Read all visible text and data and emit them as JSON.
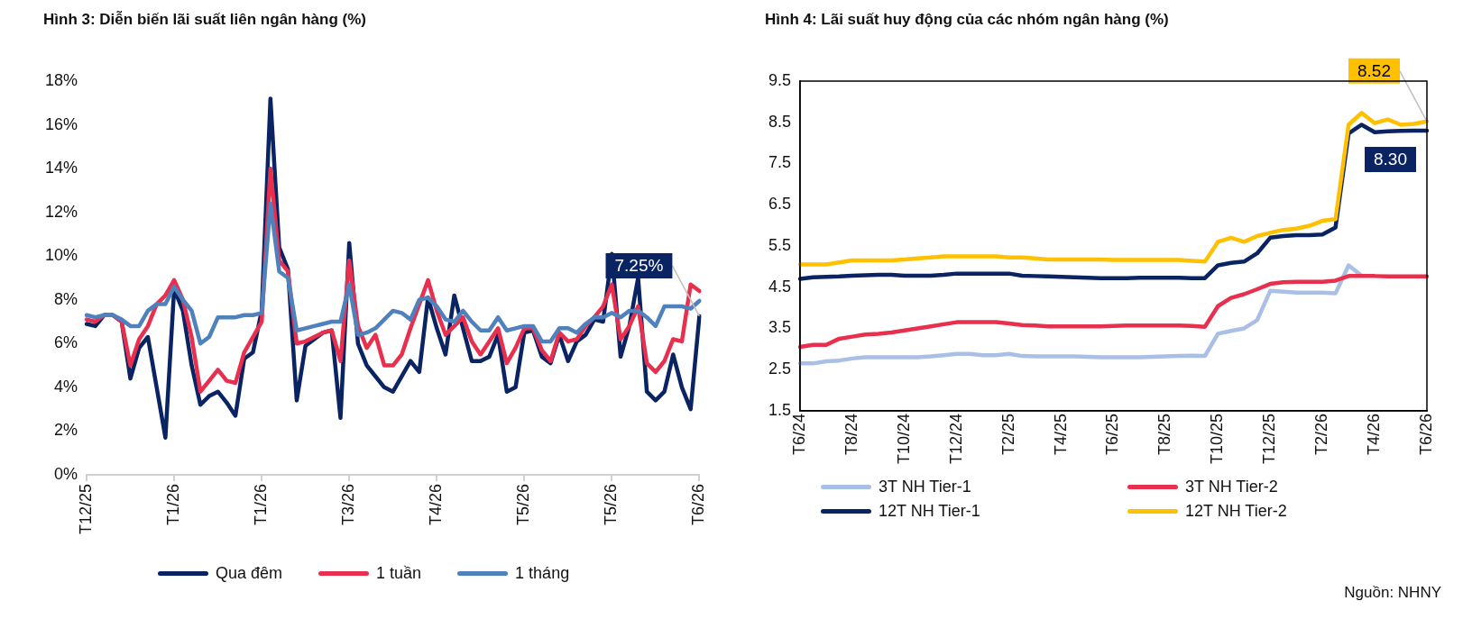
{
  "chart_data": [
    {
      "type": "line",
      "title": "Hình 3: Diễn biến lãi suất liên ngân hàng (%)",
      "marker": "none",
      "legend": "bottom",
      "grid": false,
      "categories": [
        "T12/25",
        null,
        null,
        null,
        null,
        null,
        null,
        null,
        null,
        null,
        "T1/26",
        null,
        null,
        null,
        null,
        null,
        null,
        null,
        null,
        null,
        "T1/26",
        null,
        null,
        null,
        null,
        null,
        null,
        null,
        null,
        null,
        "T3/26",
        null,
        null,
        null,
        null,
        null,
        null,
        null,
        null,
        null,
        "T4/26",
        null,
        null,
        null,
        null,
        null,
        null,
        null,
        null,
        null,
        "T5/26",
        null,
        null,
        null,
        null,
        null,
        null,
        null,
        null,
        null,
        "T5/26",
        null,
        null,
        null,
        null,
        null,
        null,
        null,
        null,
        null,
        "T6/26"
      ],
      "ylim": [
        0,
        18
      ],
      "yticks": [
        {
          "value": 0,
          "label": "0%"
        },
        {
          "value": 2,
          "label": "2%"
        },
        {
          "value": 4,
          "label": "4%"
        },
        {
          "value": 6,
          "label": "6%"
        },
        {
          "value": 8,
          "label": "8%"
        },
        {
          "value": 10,
          "label": "10%"
        },
        {
          "value": 12,
          "label": "12%"
        },
        {
          "value": 14,
          "label": "14%"
        },
        {
          "value": 16,
          "label": "16%"
        },
        {
          "value": 18,
          "label": "18%"
        }
      ],
      "series": [
        {
          "name": "Qua đêm",
          "color": "#0a2463",
          "values": [
            6.9,
            6.8,
            7.3,
            7.3,
            7.0,
            4.4,
            5.8,
            6.3,
            4.0,
            1.7,
            8.5,
            7.5,
            5.0,
            3.2,
            3.6,
            3.8,
            3.3,
            2.7,
            5.3,
            5.6,
            7.5,
            17.2,
            10.4,
            9.4,
            3.4,
            5.9,
            6.2,
            6.5,
            6.6,
            2.6,
            10.6,
            6.0,
            5.0,
            4.5,
            4.0,
            3.8,
            4.5,
            5.2,
            4.7,
            8.1,
            6.7,
            5.5,
            8.2,
            6.7,
            5.2,
            5.2,
            5.4,
            6.4,
            3.8,
            4.0,
            6.5,
            6.6,
            5.4,
            5.1,
            6.4,
            5.2,
            6.1,
            6.4,
            7.1,
            7.0,
            10.1,
            5.4,
            6.8,
            9.0,
            3.8,
            3.4,
            3.8,
            5.5,
            4.0,
            3.0,
            7.25
          ],
          "value_labels": [
            null,
            null,
            null,
            null,
            null,
            null,
            null,
            null,
            null,
            null,
            null,
            null,
            null,
            null,
            null,
            null,
            null,
            null,
            null,
            null,
            null,
            null,
            null,
            null,
            null,
            null,
            null,
            null,
            null,
            null,
            null,
            null,
            null,
            null,
            null,
            null,
            null,
            null,
            null,
            null,
            null,
            null,
            null,
            null,
            null,
            null,
            null,
            null,
            null,
            null,
            null,
            null,
            null,
            null,
            null,
            null,
            null,
            null,
            null,
            null,
            null,
            null,
            null,
            null,
            null,
            null,
            null,
            null,
            null,
            null,
            "7.25%"
          ]
        },
        {
          "name": "1 tuần",
          "color": "#e8304e",
          "values": [
            7.1,
            7.0,
            7.3,
            7.3,
            7.0,
            5.0,
            6.2,
            6.8,
            7.8,
            8.2,
            8.9,
            8.0,
            6.3,
            3.8,
            4.3,
            4.8,
            4.3,
            4.2,
            5.6,
            6.3,
            7.0,
            14.0,
            9.8,
            9.3,
            6.0,
            6.1,
            6.3,
            6.5,
            6.6,
            5.2,
            9.8,
            6.8,
            5.8,
            6.4,
            5.0,
            5.0,
            5.5,
            6.7,
            7.8,
            8.9,
            7.5,
            6.4,
            6.8,
            7.2,
            6.1,
            5.5,
            6.1,
            6.7,
            5.1,
            5.8,
            6.7,
            6.7,
            5.7,
            5.2,
            6.5,
            6.1,
            6.2,
            6.8,
            7.2,
            7.7,
            8.7,
            6.2,
            6.8,
            7.7,
            5.1,
            4.7,
            5.2,
            6.2,
            6.1,
            8.7,
            8.4
          ]
        },
        {
          "name": "1 tháng",
          "color": "#4f81bd",
          "values": [
            7.3,
            7.2,
            7.3,
            7.3,
            7.1,
            6.8,
            6.8,
            7.5,
            7.8,
            7.8,
            8.6,
            8.0,
            7.5,
            6.0,
            6.3,
            7.2,
            7.2,
            7.2,
            7.3,
            7.3,
            7.4,
            12.4,
            9.3,
            9.0,
            6.6,
            6.7,
            6.8,
            6.9,
            7.0,
            7.0,
            8.7,
            6.4,
            6.5,
            6.7,
            7.1,
            7.5,
            7.4,
            7.1,
            8.0,
            8.1,
            7.7,
            7.1,
            7.0,
            7.5,
            7.0,
            6.6,
            6.6,
            7.2,
            6.6,
            6.7,
            6.8,
            6.8,
            6.1,
            6.1,
            6.7,
            6.7,
            6.5,
            6.9,
            7.2,
            7.2,
            7.4,
            7.2,
            7.5,
            7.5,
            7.2,
            6.8,
            7.7,
            7.7,
            7.7,
            7.6,
            7.95
          ]
        }
      ]
    },
    {
      "type": "line",
      "title": "Hình 4: Lãi suất huy động của các nhóm ngân hàng (%)",
      "marker": "none",
      "legend": "bottom",
      "grid": false,
      "categories": [
        "T6/24",
        null,
        null,
        null,
        "T8/24",
        null,
        null,
        null,
        "T10/24",
        null,
        null,
        null,
        "T12/24",
        null,
        null,
        null,
        "T2/25",
        null,
        null,
        null,
        "T4/25",
        null,
        null,
        null,
        "T6/25",
        null,
        null,
        null,
        "T8/25",
        null,
        null,
        null,
        "T10/25",
        null,
        null,
        null,
        "T12/25",
        null,
        null,
        null,
        "T2/26",
        null,
        null,
        null,
        "T4/26",
        null,
        null,
        null,
        "T6/26"
      ],
      "ylim": [
        1.5,
        9.5
      ],
      "yticks": [
        1.5,
        2.5,
        3.5,
        4.5,
        5.5,
        6.5,
        7.5,
        8.5,
        9.5
      ],
      "series": [
        {
          "name": "3T NH Tier-1",
          "color": "#a9bfe6",
          "values": [
            2.65,
            2.65,
            2.7,
            2.72,
            2.77,
            2.8,
            2.8,
            2.8,
            2.8,
            2.8,
            2.82,
            2.85,
            2.88,
            2.88,
            2.85,
            2.85,
            2.88,
            2.83,
            2.82,
            2.82,
            2.82,
            2.82,
            2.81,
            2.8,
            2.8,
            2.8,
            2.8,
            2.81,
            2.82,
            2.83,
            2.84,
            2.83,
            3.37,
            3.44,
            3.5,
            3.7,
            4.41,
            4.39,
            4.37,
            4.37,
            4.37,
            4.35,
            5.03,
            4.78,
            null,
            null,
            null,
            null,
            null
          ]
        },
        {
          "name": "3T NH Tier-2",
          "color": "#e8304e",
          "values": [
            3.05,
            3.1,
            3.1,
            3.25,
            3.3,
            3.35,
            3.37,
            3.4,
            3.45,
            3.5,
            3.55,
            3.6,
            3.65,
            3.65,
            3.65,
            3.65,
            3.62,
            3.58,
            3.57,
            3.55,
            3.55,
            3.55,
            3.55,
            3.55,
            3.56,
            3.57,
            3.57,
            3.57,
            3.57,
            3.57,
            3.56,
            3.54,
            4.04,
            4.24,
            4.33,
            4.45,
            4.58,
            4.62,
            4.63,
            4.63,
            4.63,
            4.66,
            4.77,
            4.77,
            4.77,
            4.76,
            4.76,
            4.76,
            4.76
          ]
        },
        {
          "name": "12T NH Tier-1",
          "color": "#0a2463",
          "values": [
            4.7,
            4.74,
            4.75,
            4.76,
            4.78,
            4.79,
            4.8,
            4.8,
            4.78,
            4.78,
            4.78,
            4.8,
            4.83,
            4.83,
            4.83,
            4.83,
            4.83,
            4.78,
            4.77,
            4.76,
            4.75,
            4.74,
            4.73,
            4.72,
            4.72,
            4.72,
            4.73,
            4.73,
            4.73,
            4.73,
            4.72,
            4.72,
            5.03,
            5.09,
            5.12,
            5.32,
            5.7,
            5.74,
            5.76,
            5.76,
            5.78,
            5.95,
            8.23,
            8.44,
            8.26,
            8.28,
            8.29,
            8.3,
            8.3
          ],
          "value_labels": [
            null,
            null,
            null,
            null,
            null,
            null,
            null,
            null,
            null,
            null,
            null,
            null,
            null,
            null,
            null,
            null,
            null,
            null,
            null,
            null,
            null,
            null,
            null,
            null,
            null,
            null,
            null,
            null,
            null,
            null,
            null,
            null,
            null,
            null,
            null,
            null,
            null,
            null,
            null,
            null,
            null,
            null,
            null,
            null,
            null,
            null,
            null,
            null,
            "8.30"
          ]
        },
        {
          "name": "12T NH Tier-2",
          "color": "#ffc000",
          "values": [
            5.05,
            5.05,
            5.05,
            5.1,
            5.15,
            5.15,
            5.15,
            5.15,
            5.17,
            5.2,
            5.22,
            5.25,
            5.25,
            5.25,
            5.25,
            5.25,
            5.22,
            5.22,
            5.2,
            5.17,
            5.17,
            5.17,
            5.17,
            5.17,
            5.16,
            5.16,
            5.16,
            5.16,
            5.16,
            5.16,
            5.14,
            5.12,
            5.6,
            5.7,
            5.6,
            5.74,
            5.82,
            5.89,
            5.92,
            5.99,
            6.11,
            6.15,
            8.44,
            8.73,
            8.48,
            8.57,
            8.44,
            8.46,
            8.52
          ],
          "value_labels": [
            null,
            null,
            null,
            null,
            null,
            null,
            null,
            null,
            null,
            null,
            null,
            null,
            null,
            null,
            null,
            null,
            null,
            null,
            null,
            null,
            null,
            null,
            null,
            null,
            null,
            null,
            null,
            null,
            null,
            null,
            null,
            null,
            null,
            null,
            null,
            null,
            null,
            null,
            null,
            null,
            null,
            null,
            null,
            null,
            null,
            null,
            null,
            null,
            "8.52"
          ]
        }
      ],
      "annotations": [
        "Nguồn: NHNY"
      ]
    }
  ]
}
